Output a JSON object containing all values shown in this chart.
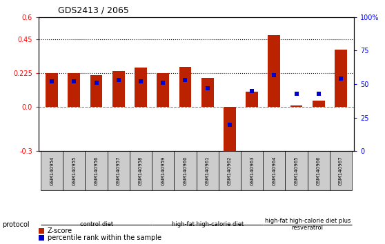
{
  "title": "GDS2413 / 2065",
  "samples": [
    "GSM140954",
    "GSM140955",
    "GSM140956",
    "GSM140957",
    "GSM140958",
    "GSM140959",
    "GSM140960",
    "GSM140961",
    "GSM140962",
    "GSM140963",
    "GSM140964",
    "GSM140965",
    "GSM140966",
    "GSM140967"
  ],
  "zscore": [
    0.225,
    0.225,
    0.21,
    0.24,
    0.26,
    0.225,
    0.265,
    0.19,
    -0.33,
    0.1,
    0.48,
    0.005,
    0.04,
    0.38
  ],
  "percentile": [
    52,
    52,
    51,
    53,
    52,
    51,
    53,
    47,
    20,
    45,
    57,
    43,
    43,
    54
  ],
  "group_boundaries": [
    0,
    5,
    10,
    14
  ],
  "group_labels": [
    "control diet",
    "high-fat high-calorie diet",
    "high-fat high-calorie diet plus\nresveratrol"
  ],
  "group_colors": [
    "#90EE90",
    "#90EE90",
    "#6EC96E"
  ],
  "bar_color": "#BB2200",
  "dot_color": "#0000CC",
  "ylim_left": [
    -0.3,
    0.6
  ],
  "ylim_right": [
    0,
    100
  ],
  "yticks_left": [
    -0.3,
    0.0,
    0.225,
    0.45,
    0.6
  ],
  "yticks_right": [
    0,
    25,
    50,
    75,
    100
  ],
  "hlines": [
    0.225,
    0.45
  ],
  "dot_size": 18,
  "bar_width": 0.55,
  "sample_cell_color": "#CCCCCC",
  "fig_width": 5.58,
  "fig_height": 3.54
}
